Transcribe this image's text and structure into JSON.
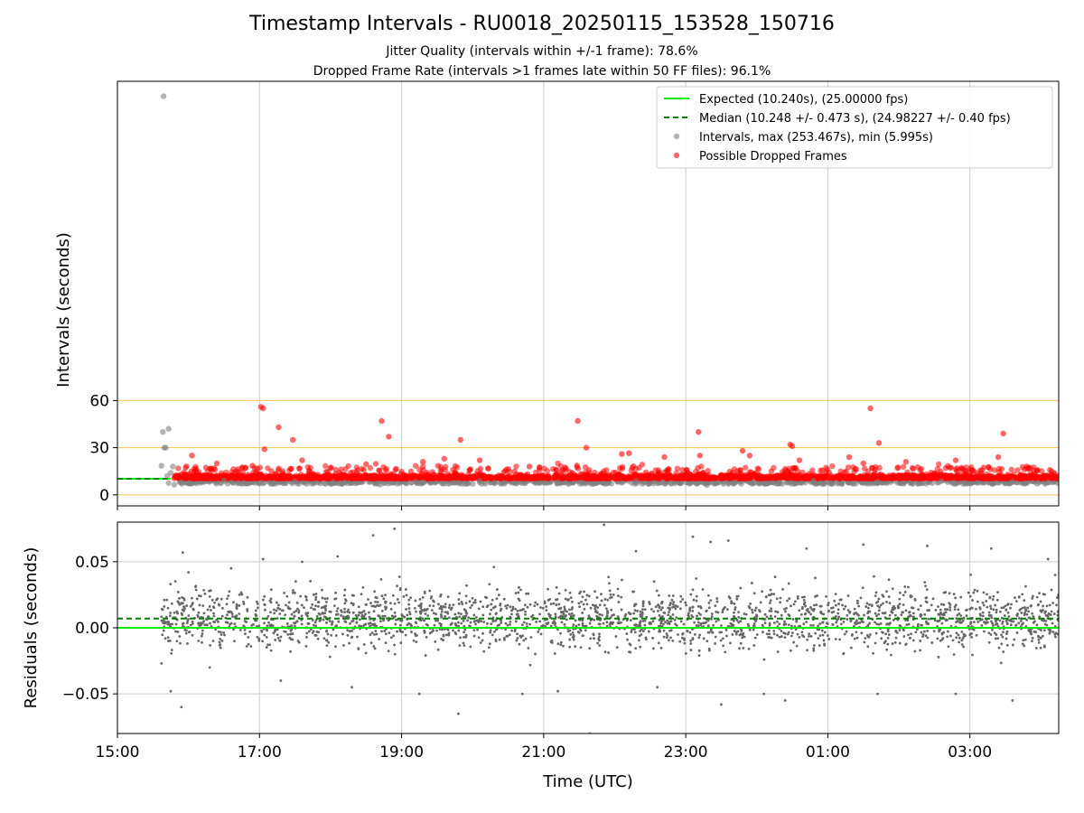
{
  "header": {
    "title": "Timestamp Intervals - RU0018_20250115_153528_150716",
    "subtitle_1": "Jitter Quality (intervals within +/-1 frame): 78.6%",
    "subtitle_2": "Dropped Frame Rate (intervals >1 frames late within 50 FF files): 96.1%"
  },
  "colors": {
    "expected": "#00ee00",
    "median": "#007f00",
    "intervals": "#808080",
    "dropped": "#ff0000",
    "threshold_lines": "#ffa500",
    "grid": "#cccccc",
    "residuals": "#666666"
  },
  "chart_data": [
    {
      "type": "scatter",
      "panel": "intervals",
      "ylabel": "Intervals (seconds)",
      "ylim": [
        -7,
        263
      ],
      "yticks": [
        0,
        30,
        60
      ],
      "ytick_labels": [
        "0",
        "30",
        "60"
      ],
      "xlim_hours": [
        15.0,
        28.25
      ],
      "grid": "vertical",
      "threshold_lines": [
        0,
        30,
        60
      ],
      "legend_position": "top-right",
      "series": [
        {
          "name": "Expected (10.240s), (25.00000 fps)",
          "kind": "line",
          "value": 10.24,
          "style": "solid"
        },
        {
          "name": "Median (10.248 +/- 0.473 s), (24.98227 +/- 0.40 fps)",
          "kind": "line",
          "value": 10.248,
          "style": "dashed"
        },
        {
          "name": "Intervals, max (253.467s), min (5.995s)",
          "kind": "points",
          "points": [
            [
              15.65,
              253.467
            ],
            [
              15.64,
              40.0
            ],
            [
              15.72,
              42.0
            ],
            [
              15.66,
              30.0
            ],
            [
              15.68,
              30.0
            ],
            [
              15.62,
              18.5
            ],
            [
              15.75,
              14.0
            ],
            [
              15.7,
              12.0
            ],
            [
              15.78,
              18.0
            ],
            [
              15.8,
              6.5
            ],
            [
              15.72,
              7.5
            ],
            [
              15.9,
              8.0
            ],
            [
              16.5,
              9.0
            ],
            [
              17.0,
              7.2
            ],
            [
              17.5,
              8.5
            ],
            [
              18.2,
              7.8
            ],
            [
              18.7,
              6.6
            ],
            [
              19.2,
              8.4
            ],
            [
              19.6,
              7.1
            ],
            [
              20.1,
              8.8
            ],
            [
              20.6,
              7.4
            ],
            [
              21.2,
              8.1
            ],
            [
              21.7,
              6.9
            ],
            [
              22.3,
              8.6
            ],
            [
              22.8,
              7.3
            ],
            [
              23.3,
              6.2
            ],
            [
              23.7,
              8.0
            ],
            [
              24.3,
              7.5
            ],
            [
              24.8,
              8.9
            ],
            [
              25.2,
              6.8
            ],
            [
              25.7,
              8.2
            ],
            [
              26.2,
              7.0
            ],
            [
              26.6,
              8.7
            ],
            [
              27.1,
              7.6
            ],
            [
              27.6,
              8.3
            ],
            [
              28.1,
              7.9
            ]
          ]
        },
        {
          "name": "Possible Dropped Frames",
          "kind": "points",
          "points": [
            [
              17.02,
              56.0
            ],
            [
              17.05,
              55.0
            ],
            [
              17.07,
              29.0
            ],
            [
              17.27,
              43.0
            ],
            [
              17.47,
              35.0
            ],
            [
              18.72,
              47.0
            ],
            [
              18.82,
              37.0
            ],
            [
              19.83,
              35.0
            ],
            [
              21.48,
              47.0
            ],
            [
              21.6,
              30.0
            ],
            [
              23.18,
              40.0
            ],
            [
              24.47,
              32.0
            ],
            [
              24.5,
              31.0
            ],
            [
              25.6,
              55.0
            ],
            [
              25.72,
              33.0
            ],
            [
              27.47,
              39.0
            ],
            [
              16.05,
              25.0
            ],
            [
              16.4,
              20.0
            ],
            [
              16.9,
              18.5
            ],
            [
              17.6,
              22.0
            ],
            [
              18.0,
              17.0
            ],
            [
              18.5,
              19.5
            ],
            [
              19.3,
              21.0
            ],
            [
              19.6,
              23.0
            ],
            [
              20.1,
              22.0
            ],
            [
              20.8,
              18.0
            ],
            [
              21.3,
              17.5
            ],
            [
              22.1,
              26.0
            ],
            [
              22.2,
              26.5
            ],
            [
              22.7,
              24.0
            ],
            [
              23.2,
              25.0
            ],
            [
              23.8,
              28.0
            ],
            [
              23.9,
              25.0
            ],
            [
              24.6,
              22.0
            ],
            [
              25.3,
              24.0
            ],
            [
              25.5,
              20.0
            ],
            [
              26.1,
              21.0
            ],
            [
              26.8,
              22.0
            ],
            [
              27.4,
              24.0
            ],
            [
              27.8,
              18.0
            ],
            [
              28.15,
              15.0
            ]
          ]
        }
      ]
    },
    {
      "type": "scatter",
      "panel": "residuals",
      "xlabel": "Time (UTC)",
      "ylabel": "Residuals (seconds)",
      "ylim": [
        -0.08,
        0.08
      ],
      "yticks": [
        -0.05,
        0.0,
        0.05
      ],
      "ytick_labels": [
        "−0.05",
        "0.00",
        "0.05"
      ],
      "xlim_hours": [
        15.0,
        28.25
      ],
      "xticks_hours": [
        15,
        17,
        19,
        21,
        23,
        25,
        27
      ],
      "xtick_labels": [
        "15:00",
        "17:00",
        "19:00",
        "21:00",
        "23:00",
        "01:00",
        "03:00"
      ],
      "grid": "both",
      "series": [
        {
          "name": "Expected",
          "kind": "line",
          "value": 0.0,
          "style": "solid"
        },
        {
          "name": "Median",
          "kind": "line",
          "value": 0.007,
          "style": "dashed"
        },
        {
          "name": "Residuals",
          "kind": "points",
          "points": [
            [
              15.63,
              0.014
            ],
            [
              15.62,
              -0.027
            ],
            [
              15.75,
              -0.048
            ],
            [
              15.85,
              0.02
            ],
            [
              15.9,
              -0.06
            ],
            [
              15.92,
              0.057
            ],
            [
              16.0,
              0.042
            ],
            [
              16.1,
              0.031
            ],
            [
              16.3,
              -0.03
            ],
            [
              16.6,
              0.045
            ],
            [
              17.05,
              0.052
            ],
            [
              17.3,
              -0.04
            ],
            [
              17.6,
              0.05
            ],
            [
              18.1,
              0.054
            ],
            [
              18.3,
              -0.045
            ],
            [
              18.6,
              0.07
            ],
            [
              18.9,
              0.075
            ],
            [
              19.25,
              -0.05
            ],
            [
              19.8,
              -0.065
            ],
            [
              20.3,
              0.046
            ],
            [
              20.7,
              -0.05
            ],
            [
              21.2,
              -0.048
            ],
            [
              21.65,
              -0.08
            ],
            [
              21.85,
              0.078
            ],
            [
              22.3,
              0.058
            ],
            [
              22.6,
              -0.045
            ],
            [
              23.1,
              0.069
            ],
            [
              23.35,
              0.065
            ],
            [
              23.6,
              0.066
            ],
            [
              23.5,
              -0.058
            ],
            [
              24.1,
              -0.05
            ],
            [
              24.4,
              -0.055
            ],
            [
              24.7,
              0.06
            ],
            [
              25.5,
              0.063
            ],
            [
              25.7,
              -0.05
            ],
            [
              26.4,
              0.062
            ],
            [
              26.8,
              -0.05
            ],
            [
              27.3,
              0.06
            ],
            [
              27.6,
              -0.055
            ],
            [
              28.1,
              0.052
            ],
            [
              28.2,
              0.04
            ]
          ]
        }
      ]
    }
  ]
}
